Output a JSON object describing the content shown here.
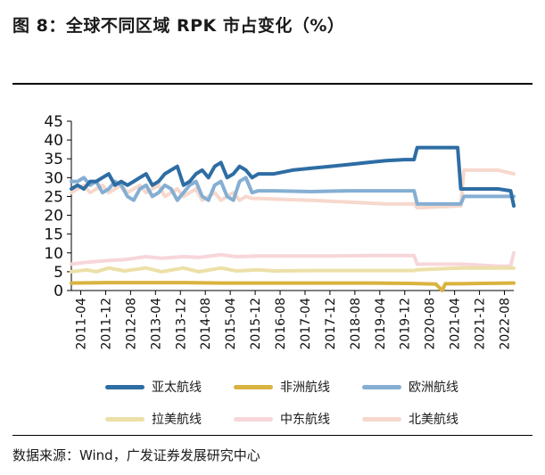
{
  "title": "图 8：全球不同区域 RPK 市占变化（%）",
  "source": "数据来源：Wind，广发证券发展研究中心",
  "chart_data": {
    "type": "line",
    "title": "图 8：全球不同区域 RPK 市占变化（%）",
    "xlabel": "",
    "ylabel": "",
    "ylim": [
      0,
      45
    ],
    "yticks": [
      0,
      5,
      10,
      15,
      20,
      25,
      30,
      35,
      40,
      45
    ],
    "x_tick_labels": [
      "2011-04",
      "2011-12",
      "2012-08",
      "2013-04",
      "2013-12",
      "2014-08",
      "2015-04",
      "2015-12",
      "2016-08",
      "2017-04",
      "2017-12",
      "2018-08",
      "2019-04",
      "2019-12",
      "2020-08",
      "2021-04",
      "2021-12",
      "2022-08"
    ],
    "x_start": "2011-01",
    "x_end": "2022-11",
    "grid": false,
    "legend_position": "bottom",
    "series": [
      {
        "name": "亚太航线",
        "color": "#2e6da4",
        "points": [
          [
            "2011-01",
            27
          ],
          [
            "2011-03",
            28
          ],
          [
            "2011-05",
            27
          ],
          [
            "2011-07",
            29
          ],
          [
            "2011-09",
            29
          ],
          [
            "2011-11",
            30
          ],
          [
            "2012-01",
            31
          ],
          [
            "2012-03",
            28
          ],
          [
            "2012-05",
            29
          ],
          [
            "2012-07",
            28
          ],
          [
            "2012-09",
            29
          ],
          [
            "2012-11",
            30
          ],
          [
            "2013-01",
            31
          ],
          [
            "2013-03",
            28
          ],
          [
            "2013-05",
            29
          ],
          [
            "2013-07",
            31
          ],
          [
            "2013-09",
            32
          ],
          [
            "2013-11",
            33
          ],
          [
            "2014-01",
            28
          ],
          [
            "2014-03",
            29
          ],
          [
            "2014-05",
            31
          ],
          [
            "2014-07",
            32
          ],
          [
            "2014-09",
            30
          ],
          [
            "2014-11",
            33
          ],
          [
            "2015-01",
            34
          ],
          [
            "2015-03",
            30
          ],
          [
            "2015-05",
            31
          ],
          [
            "2015-07",
            33
          ],
          [
            "2015-09",
            32
          ],
          [
            "2015-11",
            30
          ],
          [
            "2016-01",
            31
          ],
          [
            "2016-06",
            31
          ],
          [
            "2016-12",
            32
          ],
          [
            "2017-06",
            32.5
          ],
          [
            "2017-12",
            33
          ],
          [
            "2018-06",
            33.5
          ],
          [
            "2018-12",
            34
          ],
          [
            "2019-06",
            34.5
          ],
          [
            "2019-12",
            34.8
          ],
          [
            "2020-03",
            34.8
          ],
          [
            "2020-04",
            38
          ],
          [
            "2020-12",
            38
          ],
          [
            "2021-05",
            38
          ],
          [
            "2021-06",
            27
          ],
          [
            "2022-06",
            27
          ],
          [
            "2022-10",
            26.5
          ],
          [
            "2022-11",
            22.5
          ]
        ]
      },
      {
        "name": "非洲航线",
        "color": "#d9b33f",
        "points": [
          [
            "2011-01",
            2
          ],
          [
            "2012-01",
            2.1
          ],
          [
            "2013-01",
            2.1
          ],
          [
            "2014-01",
            2.1
          ],
          [
            "2015-01",
            2
          ],
          [
            "2016-01",
            2
          ],
          [
            "2017-01",
            2
          ],
          [
            "2018-01",
            2
          ],
          [
            "2019-01",
            2
          ],
          [
            "2020-01",
            1.9
          ],
          [
            "2020-06",
            1.8
          ],
          [
            "2020-10",
            1.7
          ],
          [
            "2020-12",
            0
          ],
          [
            "2021-01",
            1.8
          ],
          [
            "2021-06",
            1.8
          ],
          [
            "2022-01",
            1.9
          ],
          [
            "2022-11",
            2
          ]
        ]
      },
      {
        "name": "欧洲航线",
        "color": "#85aed3",
        "points": [
          [
            "2011-01",
            29
          ],
          [
            "2011-03",
            29
          ],
          [
            "2011-05",
            30
          ],
          [
            "2011-07",
            28
          ],
          [
            "2011-09",
            29
          ],
          [
            "2011-11",
            26
          ],
          [
            "2012-01",
            27
          ],
          [
            "2012-03",
            29
          ],
          [
            "2012-05",
            28
          ],
          [
            "2012-07",
            25
          ],
          [
            "2012-09",
            24
          ],
          [
            "2012-11",
            27
          ],
          [
            "2013-01",
            28
          ],
          [
            "2013-03",
            25
          ],
          [
            "2013-05",
            26
          ],
          [
            "2013-07",
            28
          ],
          [
            "2013-09",
            27
          ],
          [
            "2013-11",
            24
          ],
          [
            "2014-01",
            26
          ],
          [
            "2014-03",
            28
          ],
          [
            "2014-05",
            29
          ],
          [
            "2014-07",
            25
          ],
          [
            "2014-09",
            24
          ],
          [
            "2014-11",
            28
          ],
          [
            "2015-01",
            29
          ],
          [
            "2015-03",
            25
          ],
          [
            "2015-05",
            24
          ],
          [
            "2015-07",
            29
          ],
          [
            "2015-09",
            30
          ],
          [
            "2015-11",
            26
          ],
          [
            "2016-01",
            26.5
          ],
          [
            "2016-06",
            26.5
          ],
          [
            "2017-06",
            26.3
          ],
          [
            "2018-06",
            26.5
          ],
          [
            "2019-06",
            26.5
          ],
          [
            "2020-03",
            26.5
          ],
          [
            "2020-04",
            23
          ],
          [
            "2021-06",
            23
          ],
          [
            "2021-07",
            25
          ],
          [
            "2022-06",
            25
          ],
          [
            "2022-11",
            25
          ]
        ]
      },
      {
        "name": "拉美航线",
        "color": "#ece0a8",
        "points": [
          [
            "2011-01",
            5
          ],
          [
            "2011-06",
            5.5
          ],
          [
            "2011-09",
            5
          ],
          [
            "2012-01",
            6
          ],
          [
            "2012-06",
            5.2
          ],
          [
            "2013-01",
            6
          ],
          [
            "2013-06",
            5
          ],
          [
            "2014-01",
            6
          ],
          [
            "2014-06",
            5
          ],
          [
            "2015-01",
            6
          ],
          [
            "2015-06",
            5.2
          ],
          [
            "2016-01",
            5.5
          ],
          [
            "2016-06",
            5.2
          ],
          [
            "2017-06",
            5.3
          ],
          [
            "2018-06",
            5.3
          ],
          [
            "2019-06",
            5.3
          ],
          [
            "2020-03",
            5.3
          ],
          [
            "2020-04",
            5.5
          ],
          [
            "2021-06",
            6
          ],
          [
            "2022-11",
            6
          ]
        ]
      },
      {
        "name": "中东航线",
        "color": "#f7d6da",
        "points": [
          [
            "2011-01",
            7
          ],
          [
            "2011-06",
            7.5
          ],
          [
            "2012-01",
            8
          ],
          [
            "2012-06",
            8.2
          ],
          [
            "2013-01",
            9
          ],
          [
            "2013-06",
            8.6
          ],
          [
            "2014-01",
            9
          ],
          [
            "2014-06",
            8.8
          ],
          [
            "2015-01",
            9.5
          ],
          [
            "2015-06",
            9
          ],
          [
            "2016-01",
            9.2
          ],
          [
            "2017-01",
            9.2
          ],
          [
            "2018-01",
            9.2
          ],
          [
            "2019-01",
            9.3
          ],
          [
            "2020-03",
            9.3
          ],
          [
            "2020-04",
            7
          ],
          [
            "2021-06",
            7
          ],
          [
            "2022-06",
            6.5
          ],
          [
            "2022-10",
            6.5
          ],
          [
            "2022-11",
            10
          ]
        ]
      },
      {
        "name": "北美航线",
        "color": "#f7d8cd",
        "points": [
          [
            "2011-01",
            26
          ],
          [
            "2011-03",
            27
          ],
          [
            "2011-05",
            28
          ],
          [
            "2011-07",
            26
          ],
          [
            "2011-09",
            27
          ],
          [
            "2011-11",
            28
          ],
          [
            "2012-01",
            26
          ],
          [
            "2012-03",
            27
          ],
          [
            "2012-05",
            28
          ],
          [
            "2012-07",
            26
          ],
          [
            "2012-09",
            27
          ],
          [
            "2012-11",
            28
          ],
          [
            "2013-01",
            26
          ],
          [
            "2013-03",
            27
          ],
          [
            "2013-05",
            28
          ],
          [
            "2013-07",
            25
          ],
          [
            "2013-09",
            26
          ],
          [
            "2013-11",
            27
          ],
          [
            "2014-01",
            25
          ],
          [
            "2014-03",
            26
          ],
          [
            "2014-05",
            27
          ],
          [
            "2014-07",
            24
          ],
          [
            "2014-09",
            25
          ],
          [
            "2014-11",
            26
          ],
          [
            "2015-01",
            24
          ],
          [
            "2015-03",
            25
          ],
          [
            "2015-05",
            26
          ],
          [
            "2015-07",
            24
          ],
          [
            "2015-09",
            25
          ],
          [
            "2015-11",
            24.5
          ],
          [
            "2016-01",
            24.5
          ],
          [
            "2016-06",
            24.3
          ],
          [
            "2017-06",
            24
          ],
          [
            "2018-06",
            23.5
          ],
          [
            "2019-06",
            23
          ],
          [
            "2020-03",
            23
          ],
          [
            "2020-04",
            22
          ],
          [
            "2021-06",
            22.5
          ],
          [
            "2021-07",
            32
          ],
          [
            "2022-06",
            32
          ],
          [
            "2022-11",
            31
          ]
        ]
      }
    ]
  }
}
